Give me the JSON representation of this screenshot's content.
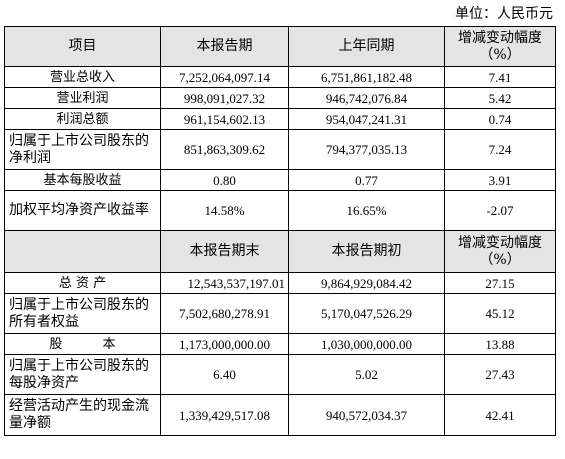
{
  "unit": "单位：人民币元",
  "header1": {
    "item": "项目",
    "current": "本报告期",
    "prior": "上年同期",
    "change": "增减变动幅度（%）"
  },
  "rows1": [
    {
      "label": "营业总收入",
      "current": "7,252,064,097.14",
      "prior": "6,751,861,182.48",
      "change": "7.41"
    },
    {
      "label": "营业利润",
      "current": "998,091,027.32",
      "prior": "946,742,076.84",
      "change": "5.42"
    },
    {
      "label": "利润总额",
      "current": "961,154,602.13",
      "prior": "954,047,241.31",
      "change": "0.74"
    },
    {
      "label": "归属于上市公司股东的净利润",
      "current": "851,863,309.62",
      "prior": "794,377,035.13",
      "change": "7.24"
    },
    {
      "label": "基本每股收益",
      "current": "0.80",
      "prior": "0.77",
      "change": "3.91"
    },
    {
      "label": "加权平均净资产收益率",
      "current": "14.58%",
      "prior": "16.65%",
      "change": "-2.07"
    }
  ],
  "header2": {
    "current": "本报告期末",
    "prior": "本报告期初",
    "change": "增减变动幅度（%）"
  },
  "rows2": [
    {
      "label": "总 资 产",
      "current": "12,543,537,197.01",
      "prior": "9,864,929,084.42",
      "change": "27.15"
    },
    {
      "label": "归属于上市公司股东的所有者权益",
      "current": "7,502,680,278.91",
      "prior": "5,170,047,526.29",
      "change": "45.12"
    },
    {
      "label": "股 本",
      "current": "1,173,000,000.00",
      "prior": "1,030,000,000.00",
      "change": "13.88"
    },
    {
      "label": "归属于上市公司股东的每股净资产",
      "current": "6.40",
      "prior": "5.02",
      "change": "27.43"
    },
    {
      "label": "经营活动产生的现金流量净额",
      "current": "1,339,429,517.08",
      "prior": "940,572,034.37",
      "change": "42.41"
    }
  ]
}
